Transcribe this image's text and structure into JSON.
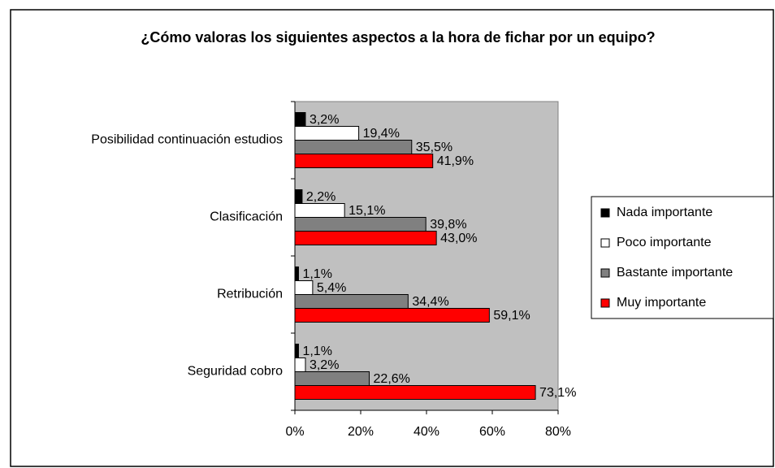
{
  "chart_data": {
    "type": "bar",
    "orientation": "horizontal",
    "title": "¿Cómo valoras los siguientes aspectos a la hora de fichar por un equipo?",
    "categories": [
      "Posibilidad continuación estudios",
      "Clasificación",
      "Retribución",
      "Seguridad cobro"
    ],
    "series": [
      {
        "name": "Nada importante",
        "color": "#000000",
        "values": [
          3.2,
          2.2,
          1.1,
          1.1
        ],
        "value_labels": [
          "3,2%",
          "2,2%",
          "1,1%",
          "1,1%"
        ]
      },
      {
        "name": "Poco importante",
        "color": "#ffffff",
        "values": [
          19.4,
          15.1,
          5.4,
          3.2
        ],
        "value_labels": [
          "19,4%",
          "15,1%",
          "5,4%",
          "3,2%"
        ]
      },
      {
        "name": "Bastante importante",
        "color": "#808080",
        "values": [
          35.5,
          39.8,
          34.4,
          22.6
        ],
        "value_labels": [
          "35,5%",
          "39,8%",
          "34,4%",
          "22,6%"
        ]
      },
      {
        "name": "Muy importante",
        "color": "#ff0000",
        "values": [
          41.9,
          43.0,
          59.1,
          73.1
        ],
        "value_labels": [
          "41,9%",
          "43,0%",
          "59,1%",
          "73,1%"
        ]
      }
    ],
    "xlim": [
      0,
      80
    ],
    "xticks": [
      {
        "value": 0,
        "label": "0%"
      },
      {
        "value": 20,
        "label": "20%"
      },
      {
        "value": 40,
        "label": "40%"
      },
      {
        "value": 60,
        "label": "60%"
      },
      {
        "value": 80,
        "label": "80%"
      }
    ],
    "grid": false,
    "legend": "right",
    "plot_background": "#c0c0c0"
  }
}
